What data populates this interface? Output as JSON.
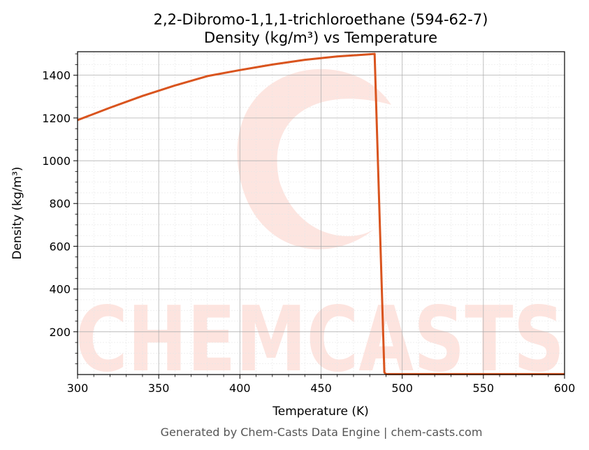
{
  "chart_data": {
    "type": "line",
    "title": "2,2-Dibromo-1,1,1-trichloroethane (594-62-7)",
    "subtitle": "Density (kg/m³) vs Temperature",
    "xlabel": "Temperature (K)",
    "ylabel": "Density (kg/m³)",
    "xlim": [
      300,
      600
    ],
    "ylim": [
      0,
      1510
    ],
    "xticks": [
      300,
      350,
      400,
      450,
      500,
      550,
      600
    ],
    "yticks": [
      200,
      400,
      600,
      800,
      1000,
      1200,
      1400
    ],
    "grid": true,
    "line_color": "#d9541e",
    "series": [
      {
        "x": [
          300,
          320,
          340,
          360,
          380,
          400,
          420,
          440,
          460,
          480,
          483,
          489,
          490,
          500,
          550,
          600
        ],
        "y": [
          1190,
          1248,
          1303,
          1352,
          1396,
          1424,
          1450,
          1472,
          1488,
          1498,
          1500,
          10,
          2,
          2,
          2,
          2
        ]
      }
    ]
  },
  "watermark": {
    "text": "CHEMCASTS",
    "color": "#fde0da"
  },
  "footer": "Generated by Chem-Casts Data Engine | chem-casts.com"
}
